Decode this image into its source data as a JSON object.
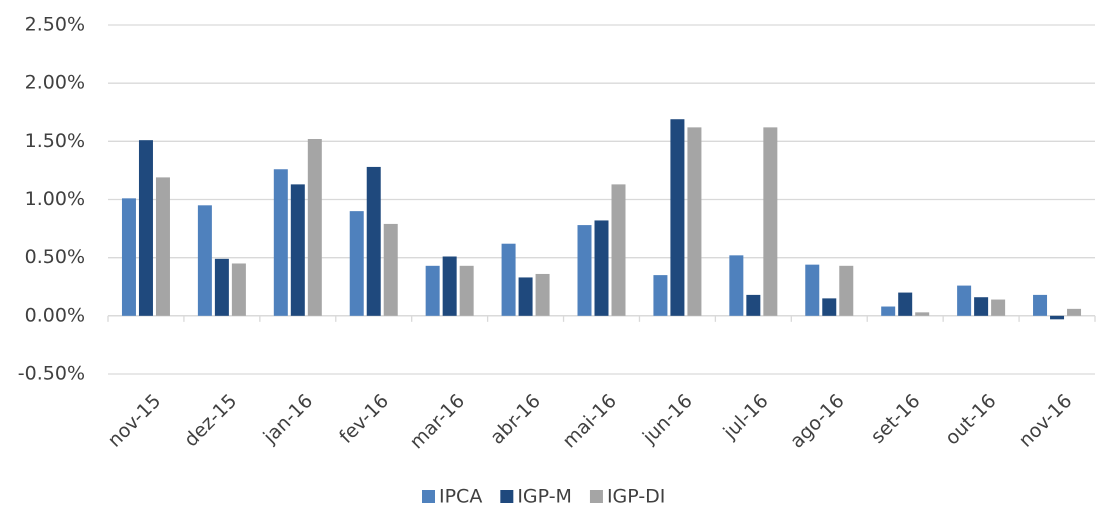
{
  "chart_data": {
    "type": "bar",
    "categories": [
      "nov-15",
      "dez-15",
      "jan-16",
      "fev-16",
      "mar-16",
      "abr-16",
      "mai-16",
      "jun-16",
      "jul-16",
      "ago-16",
      "set-16",
      "out-16",
      "nov-16"
    ],
    "series": [
      {
        "name": "IPCA",
        "color": "#4f81bd",
        "values": [
          1.01,
          0.95,
          1.26,
          0.9,
          0.43,
          0.62,
          0.78,
          0.35,
          0.52,
          0.44,
          0.08,
          0.26,
          0.18
        ]
      },
      {
        "name": "IGP-M",
        "color": "#1f497d",
        "values": [
          1.51,
          0.49,
          1.13,
          1.28,
          0.51,
          0.33,
          0.82,
          1.69,
          0.18,
          0.15,
          0.2,
          0.16,
          -0.03
        ]
      },
      {
        "name": "IGP-DI",
        "color": "#a5a5a5",
        "values": [
          1.19,
          0.45,
          1.52,
          0.79,
          0.43,
          0.36,
          1.13,
          1.62,
          1.62,
          0.43,
          0.03,
          0.14,
          0.06
        ]
      }
    ],
    "ylim": [
      -0.5,
      2.5
    ],
    "yticks": [
      {
        "value": -0.5,
        "label": "-0.50%"
      },
      {
        "value": 0,
        "label": "0.00%"
      },
      {
        "value": 0.5,
        "label": "0.50%"
      },
      {
        "value": 1,
        "label": "1.00%"
      },
      {
        "value": 1.5,
        "label": "1.50%"
      },
      {
        "value": 2,
        "label": "2.00%"
      },
      {
        "value": 2.5,
        "label": "2.50%"
      }
    ],
    "grid": true,
    "legend": "bottom"
  }
}
